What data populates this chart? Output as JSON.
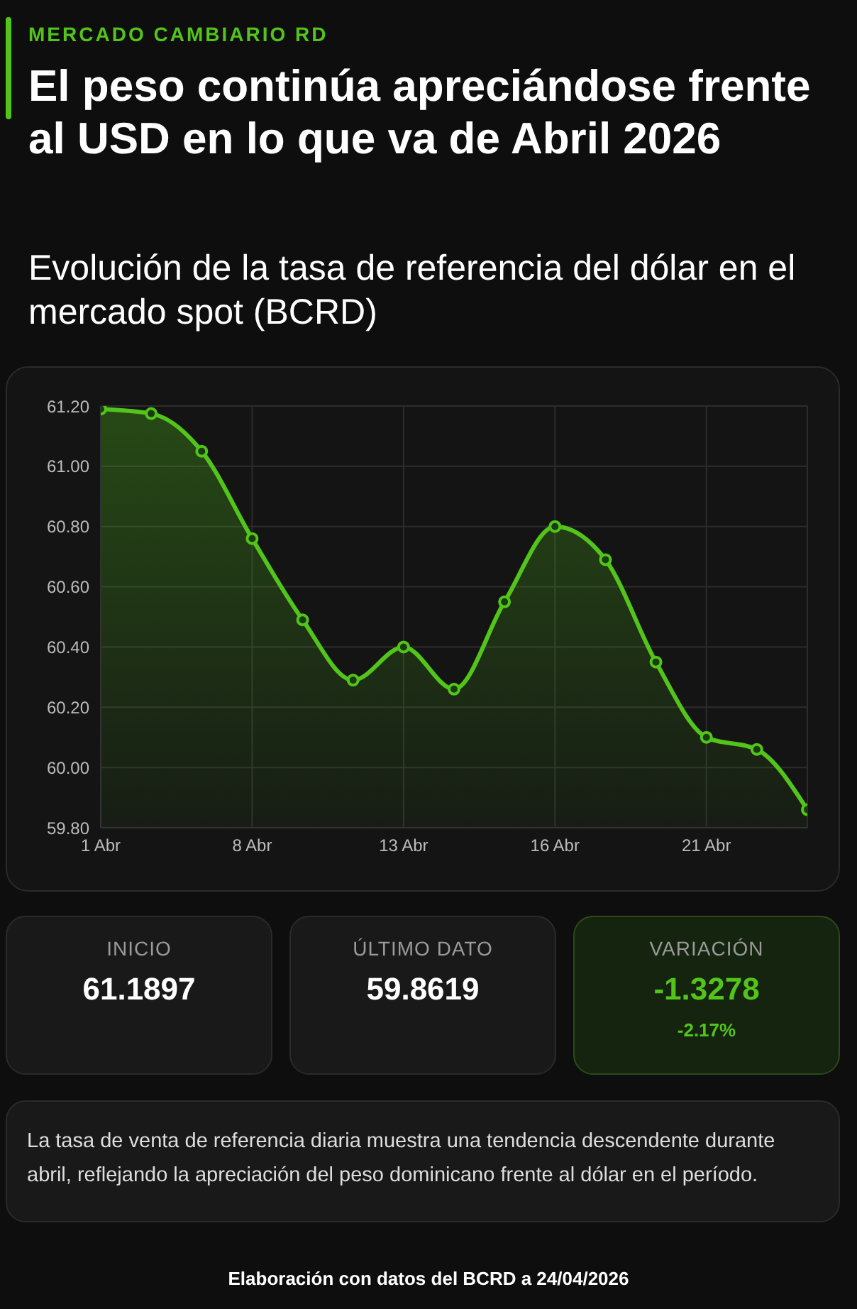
{
  "chart_data": {
    "type": "area",
    "title": "El peso continúa apreciándose frente al USD en lo que va de Abril 2026",
    "subtitle": "Evolución de la tasa de referencia del dólar en el mercado spot (BCRD)",
    "categories": [
      "1 Abr",
      null,
      null,
      "8 Abr",
      null,
      null,
      "13 Abr",
      null,
      null,
      "16 Abr",
      null,
      null,
      "21 Abr",
      null,
      null
    ],
    "series": [
      {
        "color": "#52c41a",
        "values": [
          61.19,
          61.175,
          61.05,
          60.76,
          60.49,
          60.29,
          60.4,
          60.26,
          60.55,
          60.8,
          60.69,
          60.35,
          60.1,
          60.06,
          59.86
        ]
      }
    ],
    "ylim": [
      59.8,
      61.2
    ],
    "yticks": [
      {
        "value": 59.8,
        "label": "59.80"
      },
      {
        "value": 60,
        "label": "60.00"
      },
      {
        "value": 60.2,
        "label": "60.20"
      },
      {
        "value": 60.4,
        "label": "60.40"
      },
      {
        "value": 60.6,
        "label": "60.60"
      },
      {
        "value": 60.8,
        "label": "60.80"
      },
      {
        "value": 61,
        "label": "61.00"
      },
      {
        "value": 61.2,
        "label": "61.20"
      }
    ],
    "grid": true,
    "marker": "circle",
    "legend": false,
    "annotations": [
      "MERCADO CAMBIARIO RD",
      "INICIO",
      "61.1897",
      "ÚLTIMO DATO",
      "59.8619",
      "VARIACIÓN",
      "-1.3278",
      "-2.17%",
      "La tasa de venta de referencia diaria muestra una tendencia descendente durante abril, reflejando la apreciación del peso dominicano frente al dólar en el período.",
      "Elaboración con datos del BCRD a 24/04/2026"
    ]
  }
}
